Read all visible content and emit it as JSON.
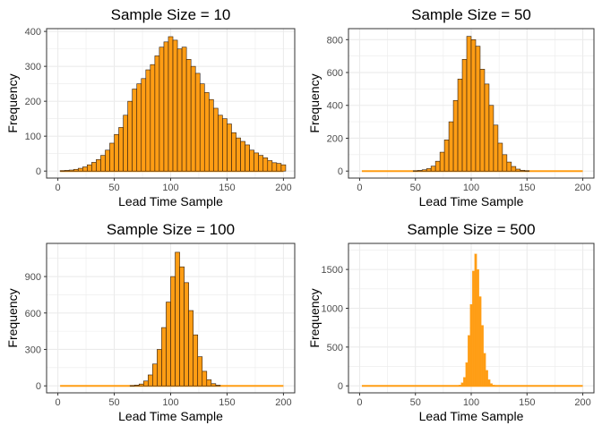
{
  "colors": {
    "bar_fill": "#ff9d14",
    "bar_outline": "#2b1c10",
    "grid": "#ebebeb",
    "panel_border": "#333333",
    "text": "#000000",
    "tick_text": "#4d4d4d"
  },
  "chart_data": [
    {
      "type": "bar",
      "title": "Sample Size = 10",
      "xlabel": "Lead Time Sample",
      "ylabel": "Frequency",
      "xlim": [
        0,
        200
      ],
      "ylim": [
        0,
        400
      ],
      "xticks": [
        0,
        50,
        100,
        150,
        200
      ],
      "yticks": [
        0,
        100,
        200,
        300,
        400
      ],
      "x": [
        4,
        8,
        12,
        16,
        20,
        24,
        28,
        32,
        36,
        40,
        44,
        48,
        52,
        56,
        60,
        64,
        68,
        72,
        76,
        80,
        84,
        88,
        92,
        96,
        100,
        104,
        108,
        112,
        116,
        120,
        124,
        128,
        132,
        136,
        140,
        144,
        148,
        152,
        156,
        160,
        164,
        168,
        172,
        176,
        180,
        184,
        188,
        192,
        196,
        200
      ],
      "values": [
        1,
        2,
        3,
        5,
        8,
        12,
        18,
        25,
        33,
        45,
        60,
        80,
        105,
        125,
        160,
        200,
        235,
        250,
        265,
        290,
        305,
        330,
        355,
        370,
        385,
        375,
        350,
        355,
        320,
        300,
        280,
        250,
        225,
        205,
        180,
        160,
        150,
        135,
        110,
        95,
        85,
        75,
        60,
        52,
        45,
        38,
        30,
        24,
        22,
        18
      ]
    },
    {
      "type": "bar",
      "title": "Sample Size = 50",
      "xlabel": "Lead Time Sample",
      "ylabel": "Frequency",
      "xlim": [
        0,
        200
      ],
      "ylim": [
        0,
        850
      ],
      "xticks": [
        0,
        50,
        100,
        150,
        200
      ],
      "yticks": [
        0,
        200,
        400,
        600,
        800
      ],
      "x": [
        50,
        54,
        58,
        62,
        66,
        70,
        74,
        78,
        82,
        86,
        90,
        94,
        98,
        102,
        106,
        110,
        114,
        118,
        122,
        126,
        130,
        134,
        138,
        142,
        146,
        150
      ],
      "values": [
        2,
        4,
        8,
        15,
        30,
        60,
        115,
        190,
        300,
        430,
        560,
        680,
        820,
        800,
        760,
        620,
        530,
        400,
        280,
        170,
        100,
        55,
        28,
        12,
        5,
        2
      ]
    },
    {
      "type": "bar",
      "title": "Sample Size = 100",
      "xlabel": "Lead Time Sample",
      "ylabel": "Frequency",
      "xlim": [
        0,
        200
      ],
      "ylim": [
        0,
        1150
      ],
      "xticks": [
        0,
        50,
        100,
        150,
        200
      ],
      "yticks": [
        0,
        300,
        600,
        900
      ],
      "x": [
        66,
        70,
        74,
        78,
        82,
        86,
        90,
        94,
        98,
        102,
        106,
        110,
        114,
        118,
        122,
        126,
        130,
        134,
        138,
        142
      ],
      "values": [
        2,
        6,
        15,
        40,
        90,
        180,
        300,
        480,
        690,
        900,
        1100,
        980,
        850,
        620,
        420,
        240,
        120,
        50,
        18,
        5
      ]
    },
    {
      "type": "bar",
      "title": "Sample Size = 500",
      "xlabel": "Lead Time Sample",
      "ylabel": "Frequency",
      "xlim": [
        0,
        200
      ],
      "ylim": [
        0,
        1800
      ],
      "xticks": [
        0,
        50,
        100,
        150,
        200
      ],
      "yticks": [
        0,
        500,
        1000,
        1500
      ],
      "x": [
        86,
        88,
        90,
        92,
        94,
        96,
        98,
        100,
        102,
        104,
        106,
        108,
        110,
        112,
        114,
        116,
        118,
        120,
        122,
        124
      ],
      "values": [
        1,
        4,
        12,
        40,
        110,
        300,
        650,
        1050,
        1480,
        1700,
        1500,
        1150,
        780,
        420,
        200,
        80,
        30,
        10,
        3,
        1
      ]
    }
  ]
}
